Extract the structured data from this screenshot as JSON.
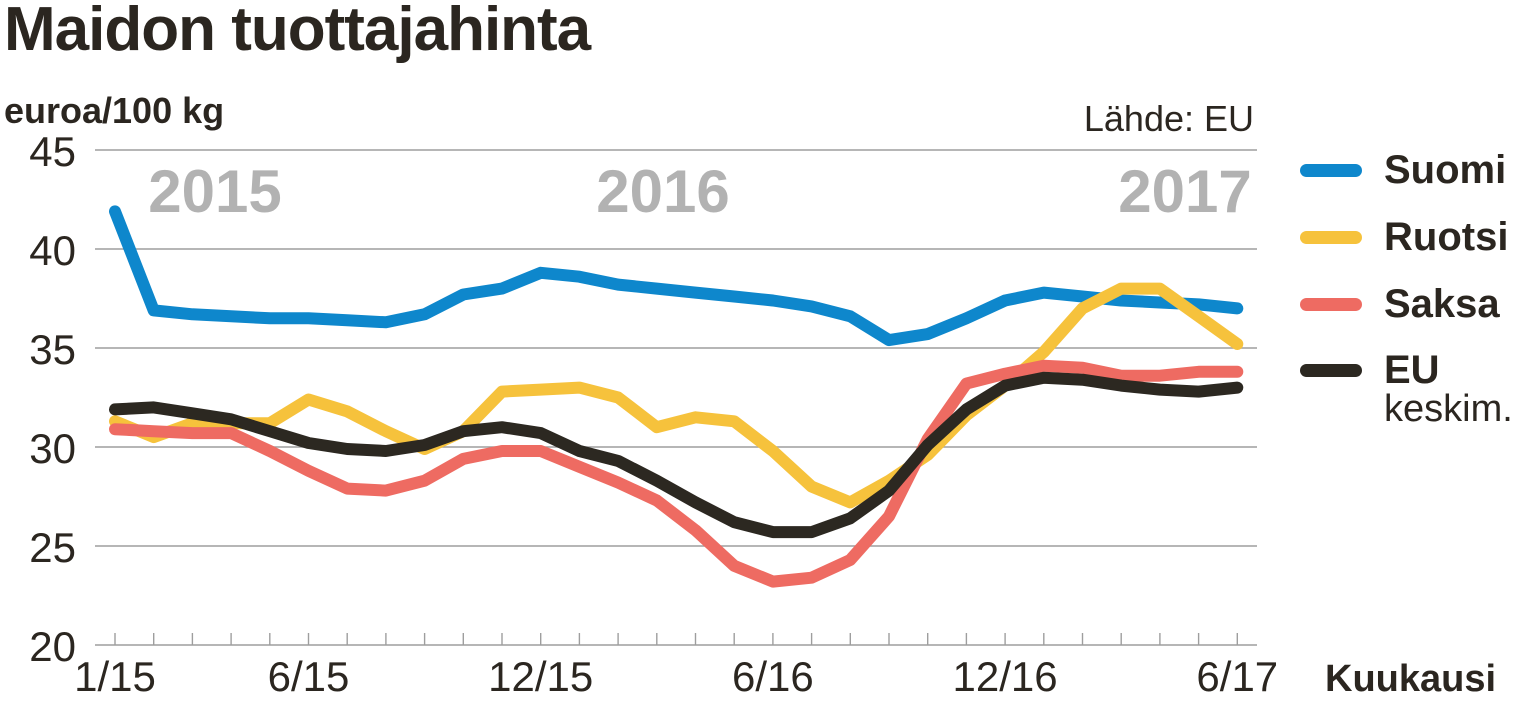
{
  "header": {
    "title": "Maidon tuottajahinta",
    "unit": "euroa/100 kg",
    "source": "Lähde: EU"
  },
  "years": [
    {
      "label": "2015",
      "x": 215
    },
    {
      "label": "2016",
      "x": 663
    },
    {
      "label": "2017",
      "x": 1185
    }
  ],
  "legend": {
    "items": [
      {
        "label": "Suomi",
        "color": "#0e87cc"
      },
      {
        "label": "Ruotsi",
        "color": "#f6c23c"
      },
      {
        "label": "Saksa",
        "color": "#ee6b62"
      },
      {
        "label": "EU",
        "color": "#2c2821"
      }
    ],
    "eu_sublabel": "keskim."
  },
  "axis": {
    "x_label": "Kuukausi",
    "y_ticks": [
      "45",
      "40",
      "35",
      "30",
      "25",
      "20"
    ],
    "x_ticks": [
      "1/15",
      "6/15",
      "12/15",
      "6/16",
      "12/16",
      "6/17"
    ]
  },
  "chart_data": {
    "type": "line",
    "title": "Maidon tuottajahinta",
    "subtitle": "euroa/100 kg",
    "source": "Lähde: EU",
    "xlabel": "Kuukausi",
    "ylabel": "euroa/100 kg",
    "ylim": [
      20,
      45
    ],
    "yticks": [
      20,
      25,
      30,
      35,
      40,
      45
    ],
    "grid": true,
    "legend_position": "right",
    "annotations": [
      "2015",
      "2016",
      "2017"
    ],
    "x": [
      "1/15",
      "2/15",
      "3/15",
      "4/15",
      "5/15",
      "6/15",
      "7/15",
      "8/15",
      "9/15",
      "10/15",
      "11/15",
      "12/15",
      "1/16",
      "2/16",
      "3/16",
      "4/16",
      "5/16",
      "6/16",
      "7/16",
      "8/16",
      "9/16",
      "10/16",
      "11/16",
      "12/16",
      "1/17",
      "2/17",
      "3/17",
      "4/17",
      "5/17",
      "6/17"
    ],
    "x_tick_labels": [
      "1/15",
      "6/15",
      "12/15",
      "6/16",
      "12/16",
      "6/17"
    ],
    "series": [
      {
        "name": "Suomi",
        "color": "#0e87cc",
        "values": [
          41.9,
          36.9,
          36.7,
          36.6,
          36.5,
          36.5,
          36.4,
          36.3,
          36.7,
          37.7,
          38.0,
          38.8,
          38.6,
          38.2,
          38.0,
          37.8,
          37.6,
          37.4,
          37.1,
          36.6,
          35.4,
          35.7,
          36.5,
          37.4,
          37.8,
          37.6,
          37.4,
          37.3,
          37.2,
          37.0
        ]
      },
      {
        "name": "Ruotsi",
        "color": "#f6c23c",
        "values": [
          31.3,
          30.5,
          31.2,
          31.2,
          31.2,
          32.4,
          31.8,
          30.8,
          29.9,
          30.8,
          32.8,
          32.9,
          33.0,
          32.5,
          31.0,
          31.5,
          31.3,
          29.8,
          28.0,
          27.2,
          28.3,
          29.6,
          31.6,
          33.1,
          34.8,
          37.0,
          38.0,
          38.0,
          36.6,
          35.2
        ]
      },
      {
        "name": "Saksa",
        "color": "#ee6b62",
        "values": [
          30.9,
          30.8,
          30.7,
          30.7,
          29.8,
          28.8,
          27.9,
          27.8,
          28.3,
          29.4,
          29.8,
          29.8,
          29.0,
          28.2,
          27.3,
          25.8,
          24.0,
          23.2,
          23.4,
          24.3,
          26.5,
          30.4,
          33.2,
          33.7,
          34.1,
          34.0,
          33.6,
          33.6,
          33.8,
          33.8
        ]
      },
      {
        "name": "EU",
        "sublabel": "keskim.",
        "color": "#2c2821",
        "values": [
          31.9,
          32.0,
          31.7,
          31.4,
          30.8,
          30.2,
          29.9,
          29.8,
          30.1,
          30.8,
          31.0,
          30.7,
          29.8,
          29.3,
          28.3,
          27.2,
          26.2,
          25.7,
          25.7,
          26.4,
          27.8,
          30.1,
          31.9,
          33.1,
          33.5,
          33.4,
          33.1,
          32.9,
          32.8,
          33.0
        ]
      }
    ]
  }
}
